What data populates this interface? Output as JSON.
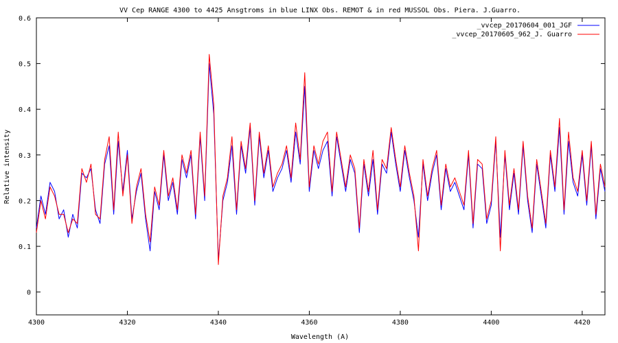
{
  "chart_data": {
    "type": "line",
    "title": "VV Cep  RANGE 4300  to 4425  Ansgtroms  in blue LINX  Obs. REMOT &  in red MUSSOL Obs. Piera.  J.Guarro.",
    "xlabel": "Wavelength (A)",
    "ylabel": "Relative intensity",
    "xlim": [
      4300,
      4425
    ],
    "ylim": [
      -0.05,
      0.6
    ],
    "x_ticks": [
      4300,
      4320,
      4340,
      4360,
      4380,
      4400,
      4420
    ],
    "y_ticks": [
      0,
      0.1,
      0.2,
      0.3,
      0.4,
      0.5,
      0.6
    ],
    "legend_position": "top-right",
    "series": [
      {
        "name": "_vvcep_20170604_001_JGF",
        "color": "#0000ff",
        "x": [
          4300,
          4301,
          4302,
          4303,
          4304,
          4305,
          4306,
          4307,
          4308,
          4309,
          4310,
          4311,
          4312,
          4313,
          4314,
          4315,
          4316,
          4317,
          4318,
          4319,
          4320,
          4321,
          4322,
          4323,
          4324,
          4325,
          4326,
          4327,
          4328,
          4329,
          4330,
          4331,
          4332,
          4333,
          4334,
          4335,
          4336,
          4337,
          4338,
          4339,
          4340,
          4341,
          4342,
          4343,
          4344,
          4345,
          4346,
          4347,
          4348,
          4349,
          4350,
          4351,
          4352,
          4353,
          4354,
          4355,
          4356,
          4357,
          4358,
          4359,
          4360,
          4361,
          4362,
          4363,
          4364,
          4365,
          4366,
          4367,
          4368,
          4369,
          4370,
          4371,
          4372,
          4373,
          4374,
          4375,
          4376,
          4377,
          4378,
          4379,
          4380,
          4381,
          4382,
          4383,
          4384,
          4385,
          4386,
          4387,
          4388,
          4389,
          4390,
          4391,
          4392,
          4393,
          4394,
          4395,
          4396,
          4397,
          4398,
          4399,
          4400,
          4401,
          4402,
          4403,
          4404,
          4405,
          4406,
          4407,
          4408,
          4409,
          4410,
          4411,
          4412,
          4413,
          4414,
          4415,
          4416,
          4417,
          4418,
          4419,
          4420,
          4421,
          4422,
          4423,
          4424,
          4425
        ],
        "values": [
          0.14,
          0.21,
          0.17,
          0.24,
          0.22,
          0.16,
          0.18,
          0.12,
          0.17,
          0.14,
          0.26,
          0.25,
          0.27,
          0.18,
          0.15,
          0.28,
          0.32,
          0.17,
          0.33,
          0.22,
          0.31,
          0.16,
          0.22,
          0.26,
          0.16,
          0.09,
          0.22,
          0.18,
          0.3,
          0.2,
          0.24,
          0.17,
          0.29,
          0.25,
          0.3,
          0.16,
          0.34,
          0.2,
          0.5,
          0.39,
          0.07,
          0.2,
          0.24,
          0.32,
          0.17,
          0.32,
          0.26,
          0.36,
          0.19,
          0.34,
          0.25,
          0.31,
          0.22,
          0.25,
          0.27,
          0.31,
          0.24,
          0.35,
          0.28,
          0.45,
          0.22,
          0.31,
          0.27,
          0.31,
          0.33,
          0.21,
          0.34,
          0.28,
          0.22,
          0.29,
          0.26,
          0.13,
          0.28,
          0.21,
          0.29,
          0.17,
          0.28,
          0.26,
          0.35,
          0.28,
          0.22,
          0.31,
          0.25,
          0.2,
          0.12,
          0.28,
          0.2,
          0.26,
          0.3,
          0.18,
          0.27,
          0.22,
          0.24,
          0.21,
          0.18,
          0.3,
          0.14,
          0.28,
          0.27,
          0.15,
          0.19,
          0.33,
          0.12,
          0.3,
          0.18,
          0.26,
          0.17,
          0.32,
          0.2,
          0.13,
          0.28,
          0.21,
          0.14,
          0.3,
          0.22,
          0.36,
          0.17,
          0.33,
          0.24,
          0.21,
          0.3,
          0.19,
          0.32,
          0.16,
          0.27,
          0.22
        ],
        "values_note": "sampled at 1 A resolution"
      },
      {
        "name": "_vvcep_20170605_962_J. Guarro",
        "color": "#ff0000",
        "x": [
          4300,
          4301,
          4302,
          4303,
          4304,
          4305,
          4306,
          4307,
          4308,
          4309,
          4310,
          4311,
          4312,
          4313,
          4314,
          4315,
          4316,
          4317,
          4318,
          4319,
          4320,
          4321,
          4322,
          4323,
          4324,
          4325,
          4326,
          4327,
          4328,
          4329,
          4330,
          4331,
          4332,
          4333,
          4334,
          4335,
          4336,
          4337,
          4338,
          4339,
          4340,
          4341,
          4342,
          4343,
          4344,
          4345,
          4346,
          4347,
          4348,
          4349,
          4350,
          4351,
          4352,
          4353,
          4354,
          4355,
          4356,
          4357,
          4358,
          4359,
          4360,
          4361,
          4362,
          4363,
          4364,
          4365,
          4366,
          4367,
          4368,
          4369,
          4370,
          4371,
          4372,
          4373,
          4374,
          4375,
          4376,
          4377,
          4378,
          4379,
          4380,
          4381,
          4382,
          4383,
          4384,
          4385,
          4386,
          4387,
          4388,
          4389,
          4390,
          4391,
          4392,
          4393,
          4394,
          4395,
          4396,
          4397,
          4398,
          4399,
          4400,
          4401,
          4402,
          4403,
          4404,
          4405,
          4406,
          4407,
          4408,
          4409,
          4410,
          4411,
          4412,
          4413,
          4414,
          4415,
          4416,
          4417,
          4418,
          4419,
          4420,
          4421,
          4422,
          4423,
          4424,
          4425
        ],
        "values": [
          0.13,
          0.2,
          0.16,
          0.23,
          0.21,
          0.17,
          0.17,
          0.13,
          0.16,
          0.15,
          0.27,
          0.24,
          0.28,
          0.17,
          0.16,
          0.29,
          0.34,
          0.18,
          0.35,
          0.21,
          0.3,
          0.15,
          0.23,
          0.27,
          0.17,
          0.11,
          0.23,
          0.19,
          0.31,
          0.21,
          0.25,
          0.18,
          0.3,
          0.26,
          0.31,
          0.17,
          0.35,
          0.21,
          0.52,
          0.41,
          0.06,
          0.21,
          0.25,
          0.34,
          0.18,
          0.33,
          0.27,
          0.37,
          0.2,
          0.35,
          0.26,
          0.32,
          0.23,
          0.26,
          0.28,
          0.32,
          0.25,
          0.37,
          0.29,
          0.48,
          0.23,
          0.32,
          0.28,
          0.33,
          0.35,
          0.22,
          0.35,
          0.29,
          0.23,
          0.3,
          0.27,
          0.14,
          0.29,
          0.22,
          0.31,
          0.18,
          0.29,
          0.27,
          0.36,
          0.29,
          0.23,
          0.32,
          0.26,
          0.21,
          0.09,
          0.29,
          0.21,
          0.27,
          0.31,
          0.19,
          0.28,
          0.23,
          0.25,
          0.22,
          0.19,
          0.31,
          0.15,
          0.29,
          0.28,
          0.16,
          0.2,
          0.34,
          0.09,
          0.31,
          0.19,
          0.27,
          0.18,
          0.33,
          0.21,
          0.14,
          0.29,
          0.22,
          0.15,
          0.31,
          0.23,
          0.38,
          0.18,
          0.35,
          0.25,
          0.22,
          0.31,
          0.2,
          0.33,
          0.17,
          0.28,
          0.23
        ],
        "values_note": "sampled at 1 A resolution"
      }
    ]
  }
}
